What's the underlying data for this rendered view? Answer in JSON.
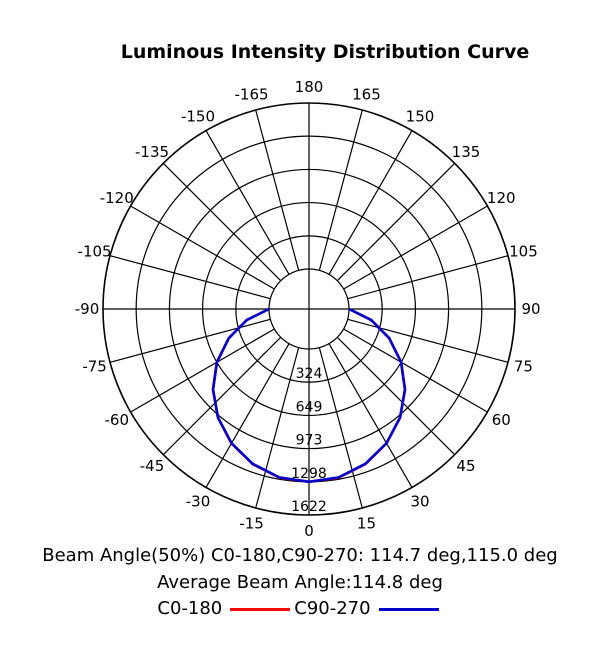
{
  "chart_data": {
    "type": "polar",
    "title": "Luminous Intensity Distribution Curve",
    "angle_ticks": [
      180,
      165,
      150,
      135,
      120,
      105,
      90,
      75,
      60,
      45,
      30,
      15,
      0,
      -15,
      -30,
      -45,
      -60,
      -75,
      -90,
      -105,
      -120,
      -135,
      -150,
      -165
    ],
    "radial_ticks": [
      324,
      649,
      973,
      1298,
      1622
    ],
    "rmax": 1622,
    "series": [
      {
        "name": "C0-180",
        "color": "#ff0000",
        "angles": [
          0,
          10,
          20,
          30,
          40,
          50,
          60,
          70,
          80,
          90
        ],
        "values": [
          1298,
          1282,
          1222,
          1125,
          994,
          834,
          649,
          444,
          226,
          0
        ]
      },
      {
        "name": "C90-270",
        "color": "#0000cc",
        "angles": [
          0,
          10,
          20,
          30,
          40,
          50,
          60,
          70,
          80,
          90
        ],
        "values": [
          1298,
          1280,
          1219,
          1123,
          993,
          833,
          648,
          443,
          225,
          0
        ]
      }
    ],
    "notes": {
      "beam_angle": "Beam Angle(50%) C0-180,C90-270: 114.7 deg,115.0 deg",
      "average_beam": "Average Beam Angle:114.8 deg"
    }
  }
}
